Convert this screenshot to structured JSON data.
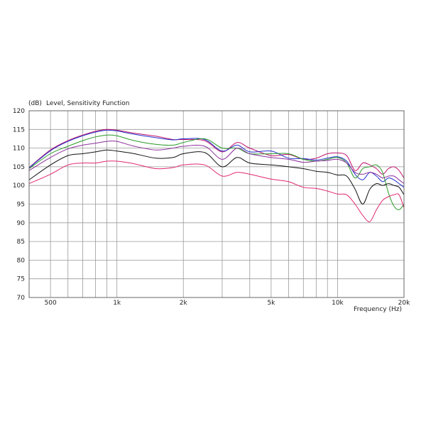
{
  "chart_data": {
    "type": "line",
    "title": "Level, Sensitivity Function",
    "ylabel": "(dB)",
    "xlabel": "Frequency  (Hz)",
    "xscale": "log",
    "xlim": [
      400,
      20000
    ],
    "ylim": [
      70,
      120
    ],
    "grid": true,
    "x_ticks": [
      {
        "value": 500,
        "label": "500"
      },
      {
        "value": 1000,
        "label": "1k"
      },
      {
        "value": 2000,
        "label": "2k"
      },
      {
        "value": 5000,
        "label": "5k"
      },
      {
        "value": 10000,
        "label": "10k"
      },
      {
        "value": 20000,
        "label": "20k"
      }
    ],
    "x_grid": [
      400,
      500,
      600,
      700,
      800,
      900,
      1000,
      2000,
      3000,
      4000,
      5000,
      6000,
      7000,
      8000,
      9000,
      10000,
      20000
    ],
    "y_ticks": [
      70,
      75,
      80,
      85,
      90,
      95,
      100,
      105,
      110,
      115,
      120
    ],
    "x": [
      400,
      500,
      600,
      700,
      800,
      900,
      1000,
      1200,
      1500,
      1800,
      2000,
      2500,
      3000,
      3500,
      4000,
      5000,
      6000,
      7000,
      8000,
      9000,
      10000,
      11000,
      12000,
      13000,
      14000,
      15000,
      16000,
      17000,
      18000,
      19000,
      20000
    ],
    "series": [
      {
        "color": "#c0136d",
        "values": [
          104.8,
          109.5,
          112.0,
          113.5,
          114.5,
          115.0,
          114.8,
          114.0,
          113.2,
          112.3,
          112.3,
          112.0,
          109.0,
          111.5,
          110.0,
          108.0,
          108.3,
          107.0,
          107.3,
          108.5,
          108.7,
          108.0,
          104.0,
          106.0,
          105.5,
          104.5,
          103.0,
          104.5,
          105.0,
          104.0,
          102.0
        ]
      },
      {
        "color": "#2233cc",
        "values": [
          104.7,
          109.3,
          111.8,
          113.3,
          114.3,
          114.8,
          114.6,
          113.7,
          112.8,
          112.2,
          112.5,
          112.3,
          109.2,
          110.8,
          109.0,
          109.2,
          107.3,
          107.2,
          106.8,
          107.3,
          107.7,
          106.5,
          103.0,
          101.5,
          103.5,
          102.5,
          101.0,
          102.0,
          101.5,
          100.5,
          99.5
        ]
      },
      {
        "color": "#2a9a2a",
        "values": [
          104.5,
          108.5,
          110.5,
          112.0,
          113.0,
          113.5,
          113.3,
          112.0,
          111.0,
          110.8,
          111.5,
          112.5,
          110.0,
          110.0,
          108.5,
          108.5,
          108.5,
          107.0,
          106.5,
          107.0,
          107.5,
          106.0,
          102.0,
          104.5,
          105.0,
          105.5,
          103.5,
          98.0,
          94.5,
          93.5,
          95.0
        ]
      },
      {
        "color": "#8c2e9c",
        "values": [
          104.0,
          107.5,
          109.8,
          110.8,
          111.3,
          111.8,
          111.8,
          110.5,
          109.5,
          110.0,
          110.5,
          110.5,
          107.0,
          110.0,
          108.5,
          107.5,
          107.0,
          106.2,
          106.5,
          106.7,
          107.0,
          106.0,
          103.5,
          103.0,
          103.5,
          103.0,
          102.0,
          102.5,
          102.5,
          101.5,
          100.5
        ]
      },
      {
        "color": "#111111",
        "values": [
          101.5,
          105.5,
          108.0,
          108.5,
          109.0,
          109.5,
          109.2,
          108.5,
          107.3,
          107.5,
          108.5,
          108.8,
          105.0,
          107.5,
          106.0,
          105.5,
          105.0,
          104.5,
          103.8,
          103.5,
          102.8,
          102.5,
          99.0,
          95.0,
          99.0,
          100.5,
          100.0,
          100.5,
          100.0,
          99.5,
          97.5
        ]
      },
      {
        "color": "#e0276f",
        "values": [
          100.5,
          103.0,
          105.5,
          106.0,
          106.0,
          106.5,
          106.5,
          105.8,
          104.5,
          104.8,
          105.5,
          105.5,
          102.5,
          103.5,
          103.0,
          101.7,
          101.0,
          99.5,
          99.2,
          98.5,
          97.7,
          97.5,
          95.0,
          92.0,
          90.3,
          93.5,
          96.0,
          97.0,
          97.5,
          97.5,
          94.0
        ]
      }
    ]
  }
}
